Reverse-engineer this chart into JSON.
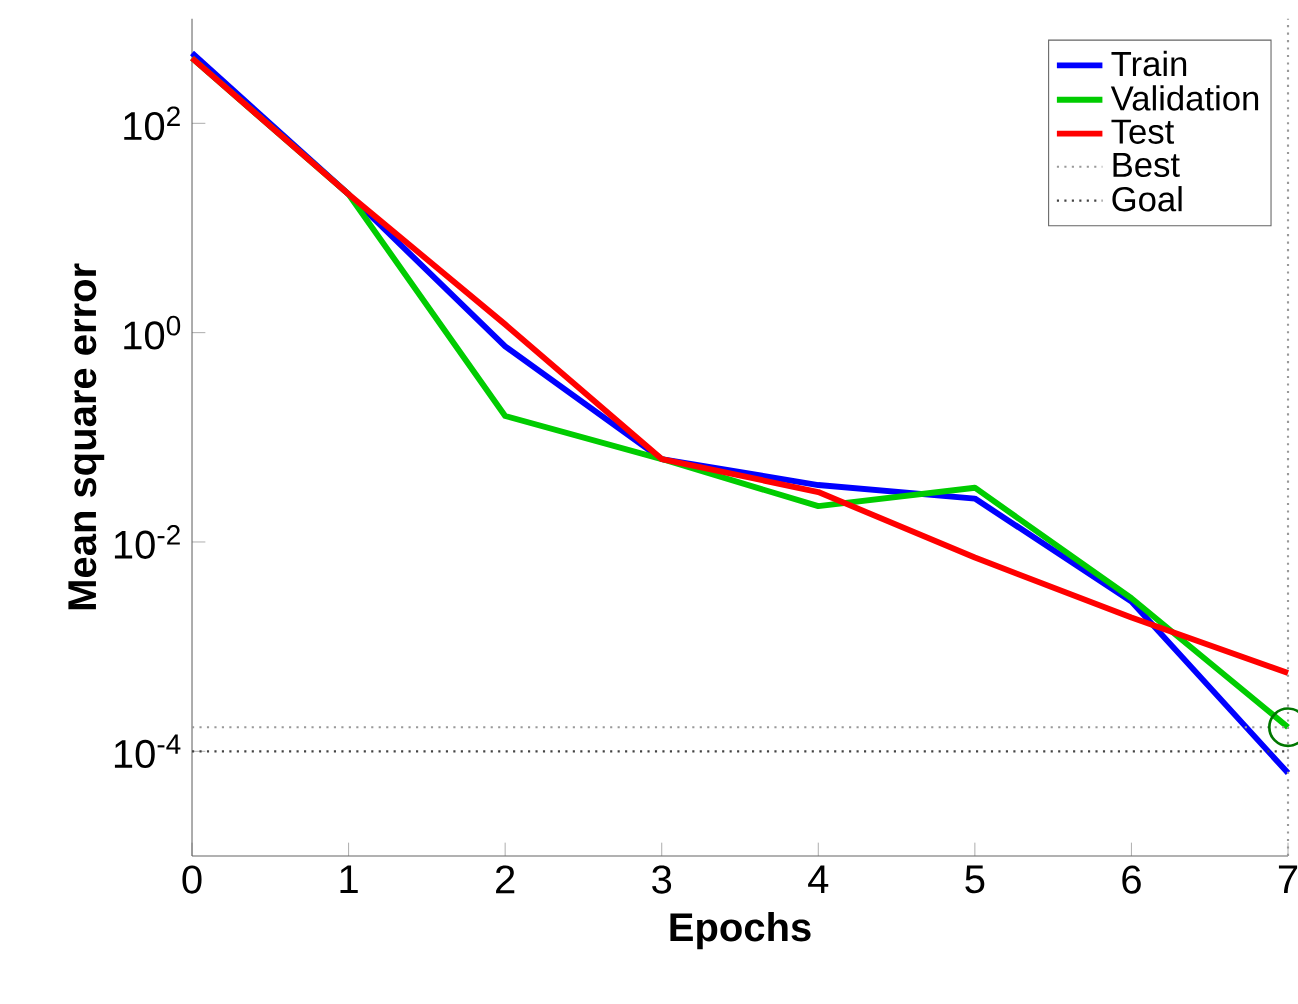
{
  "chart_data": {
    "type": "line",
    "xlabel": "Epochs",
    "ylabel": "Mean square error",
    "log": "y",
    "x": [
      0,
      1,
      2,
      3,
      4,
      5,
      6,
      7
    ],
    "xlim": [
      0,
      7
    ],
    "xticks": [
      0,
      1,
      2,
      3,
      4,
      5,
      6,
      7
    ],
    "ylim": [
      1e-05,
      1000
    ],
    "yticks": [
      {
        "value": 100,
        "label": "10$^{2}$"
      },
      {
        "value": 1,
        "label": "10$^{0}$"
      },
      {
        "value": 0.01,
        "label": "10$^{-2}$"
      },
      {
        "value": 0.0001,
        "label": "10$^{-4}$"
      }
    ],
    "series": [
      {
        "name": "Train",
        "color": "#0000ff",
        "values": [
          470,
          21,
          0.74,
          0.062,
          0.035,
          0.026,
          0.0027,
          6.2e-05
        ]
      },
      {
        "name": "Validation",
        "color": "#00cc00",
        "values": [
          420,
          21,
          0.16,
          0.062,
          0.022,
          0.033,
          0.0029,
          0.00017
        ]
      },
      {
        "name": "Test",
        "color": "#ff0000",
        "values": [
          420,
          21,
          1.2,
          0.062,
          0.03,
          0.0071,
          0.0019,
          0.00056
        ]
      },
      {
        "type": "scatter",
        "marker": "circle",
        "color": "#007700",
        "x": [
          7
        ],
        "values": [
          0.00017
        ]
      }
    ],
    "ref_lines": [
      {
        "axis": "y",
        "value": 0.00017,
        "label": "Best",
        "color": "#999999",
        "line_style": "dotted"
      },
      {
        "axis": "y",
        "value": 0.0001,
        "label": "Goal",
        "color": "#444444",
        "line_style": "dotted"
      },
      {
        "axis": "x",
        "value": 7,
        "color": "#999999",
        "line_style": "dotted"
      }
    ],
    "legend": "top right",
    "grid": false,
    "marker": "none",
    "line_style": "solid"
  }
}
